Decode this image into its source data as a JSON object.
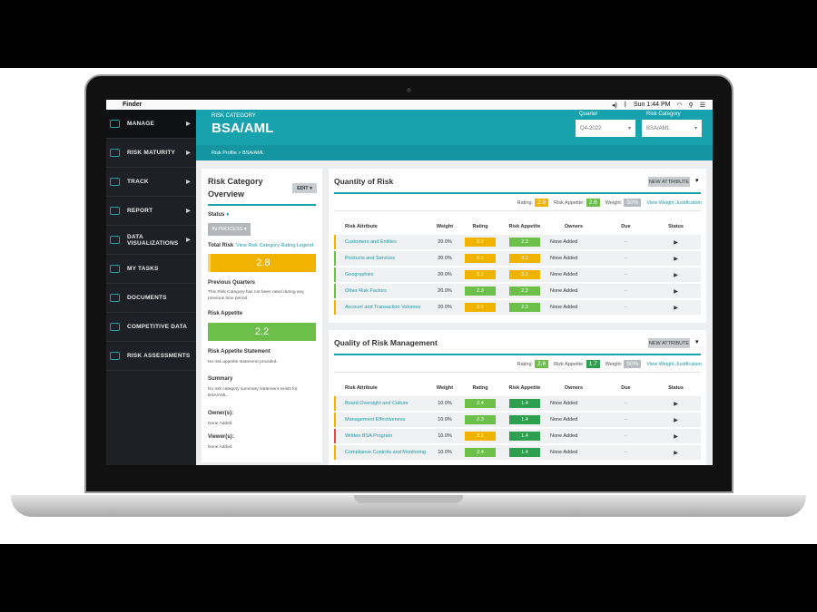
{
  "menubar": {
    "app": "Finder",
    "clock": "Sun 1:44 PM"
  },
  "sidebar": {
    "items": [
      {
        "label": "MANAGE",
        "arrow": true
      },
      {
        "label": "RISK MATURITY",
        "arrow": true
      },
      {
        "label": "TRACK",
        "arrow": true
      },
      {
        "label": "REPORT",
        "arrow": true
      },
      {
        "label": "DATA VISUALIZATIONS",
        "arrow": true
      },
      {
        "label": "MY TASKS"
      },
      {
        "label": "DOCUMENTS"
      },
      {
        "label": "COMPETITIVE DATA"
      },
      {
        "label": "RISK ASSESSMENTS"
      }
    ]
  },
  "header": {
    "subtitle": "RISK CATEGORY",
    "title": "BSA/AML",
    "quarter_label": "Quarter",
    "quarter_value": "Q4-2022",
    "category_label": "Risk Category",
    "category_value": "BSA/AML",
    "breadcrumb": "Risk Profile  >  BSA/AML"
  },
  "overview": {
    "title": "Risk Category Overview",
    "edit": "EDIT ▾",
    "status_label": "Status",
    "status_value": "IN PROCESS ▾",
    "total_risk_label": "Total Risk",
    "legend_link": "View Risk Category Rating Legend",
    "total_risk": "2.8",
    "prev_label": "Previous Quarters",
    "prev_text": "This Risk Category has not been rated during any previous time period.",
    "appetite_label": "Risk Appetite",
    "appetite": "2.2",
    "statement_label": "Risk Appetite Statement",
    "statement_text": "No risk appetite statement provided.",
    "summary_label": "Summary",
    "summary_text": "No risk category summary statement exists for BSA/AML.",
    "owners_label": "Owner(s):",
    "owners_value": "None Added",
    "viewers_label": "Viewer(s):",
    "viewers_value": "None Added"
  },
  "colors": {
    "teal": "#17a2ad",
    "yellow": "#f0b400",
    "green": "#6cc04a",
    "dark_green": "#2e9e4f",
    "red": "#e04b4b",
    "gray": "#b8bcc0"
  },
  "columns": [
    "Risk Attribute",
    "Weight",
    "Rating",
    "Risk Appetite",
    "Owners",
    "Due",
    "Status"
  ],
  "sections": [
    {
      "title": "Quantity of Risk",
      "new_attr": "NEW ATTRIBUTE",
      "rating_label": "Rating:",
      "rating": "2.9",
      "rating_color": "#f0b400",
      "appetite_label": "Risk Appetite:",
      "appetite": "2.6",
      "appetite_color": "#6cc04a",
      "weight_label": "Weight:",
      "weight": "50%",
      "justify": "View Weight Justification",
      "rows": [
        {
          "name": "Customers and Entities",
          "weight": "20.0%",
          "rating": "3.1",
          "rating_color": "#f0b400",
          "appetite": "2.3",
          "appetite_color": "#6cc04a",
          "owners": "None Added",
          "due": "--",
          "edge": "#f0b400"
        },
        {
          "name": "Products and Services",
          "weight": "20.0%",
          "rating": "3.1",
          "rating_color": "#f0b400",
          "appetite": "3.1",
          "appetite_color": "#f0b400",
          "owners": "None Added",
          "due": "--",
          "edge": "#6cc04a"
        },
        {
          "name": "Geographies",
          "weight": "20.0%",
          "rating": "3.1",
          "rating_color": "#f0b400",
          "appetite": "3.1",
          "appetite_color": "#f0b400",
          "owners": "None Added",
          "due": "--",
          "edge": "#6cc04a"
        },
        {
          "name": "Other Risk Factors",
          "weight": "20.0%",
          "rating": "2.3",
          "rating_color": "#6cc04a",
          "appetite": "2.3",
          "appetite_color": "#6cc04a",
          "owners": "None Added",
          "due": "--",
          "edge": "#6cc04a"
        },
        {
          "name": "Account and Transaction Volumes",
          "weight": "20.0%",
          "rating": "3.1",
          "rating_color": "#f0b400",
          "appetite": "2.3",
          "appetite_color": "#6cc04a",
          "owners": "None Added",
          "due": "--",
          "edge": "#f0b400"
        }
      ]
    },
    {
      "title": "Quality of Risk Management",
      "new_attr": "NEW ATTRIBUTE",
      "rating_label": "Rating:",
      "rating": "2.6",
      "rating_color": "#6cc04a",
      "appetite_label": "Risk Appetite:",
      "appetite": "1.7",
      "appetite_color": "#2e9e4f",
      "weight_label": "Weight:",
      "weight": "50%",
      "justify": "View Weight Justification",
      "rows": [
        {
          "name": "Board Oversight and Culture",
          "weight": "10.0%",
          "rating": "2.4",
          "rating_color": "#6cc04a",
          "appetite": "1.4",
          "appetite_color": "#2e9e4f",
          "owners": "None Added",
          "due": "--",
          "edge": "#f0b400"
        },
        {
          "name": "Management Effectiveness",
          "weight": "10.0%",
          "rating": "2.3",
          "rating_color": "#6cc04a",
          "appetite": "1.4",
          "appetite_color": "#2e9e4f",
          "owners": "None Added",
          "due": "--",
          "edge": "#f0b400"
        },
        {
          "name": "Written BSA Program",
          "weight": "10.0%",
          "rating": "3.1",
          "rating_color": "#f0b400",
          "appetite": "1.4",
          "appetite_color": "#2e9e4f",
          "owners": "None Added",
          "due": "--",
          "edge": "#e04b4b"
        },
        {
          "name": "Compliance Controls and Monitoring",
          "weight": "10.0%",
          "rating": "2.4",
          "rating_color": "#6cc04a",
          "appetite": "1.4",
          "appetite_color": "#2e9e4f",
          "owners": "None Added",
          "due": "--",
          "edge": "#f0b400"
        }
      ]
    }
  ]
}
